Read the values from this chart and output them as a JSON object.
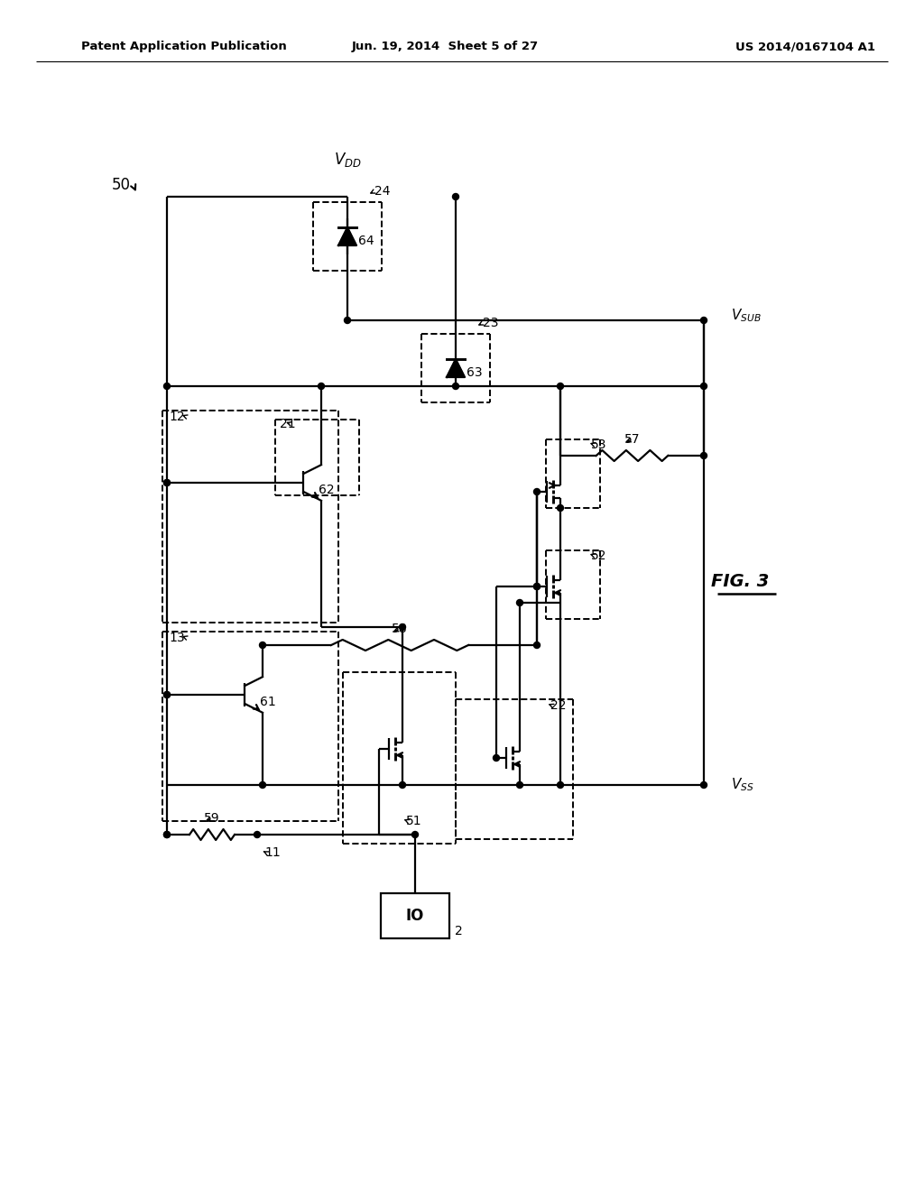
{
  "bg": "#ffffff",
  "header_left": "Patent Application Publication",
  "header_center": "Jun. 19, 2014  Sheet 5 of 27",
  "header_right": "US 2014/0167104 A1"
}
